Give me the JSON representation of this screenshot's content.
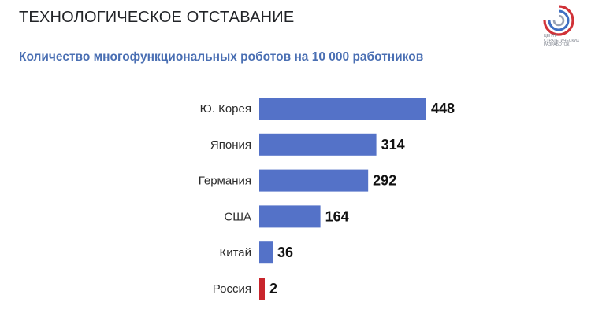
{
  "header": {
    "title": "ТЕХНОЛОГИЧЕСКОЕ ОТСТАВАНИЕ",
    "subtitle": "Количество многофункциональных роботов на 10 000 работников"
  },
  "logo": {
    "icon": "csr-circular-logo",
    "text": "ЦЕНТР\nСТРАТЕГИЧЕСКИХ\nРАЗРАБОТОК",
    "colors": [
      "#d13238",
      "#3f6fc2",
      "#9aa3b5"
    ]
  },
  "chart_data": {
    "type": "bar",
    "orientation": "horizontal",
    "categories": [
      "Ю. Корея",
      "Япония",
      "Германия",
      "США",
      "Китай",
      "Россия"
    ],
    "values": [
      448,
      314,
      292,
      164,
      36,
      2
    ],
    "xlim": [
      0,
      448
    ],
    "grid": false,
    "colors": {
      "default": "#5472c8",
      "highlight": "#c8252c",
      "highlight_category": "Россия"
    }
  }
}
